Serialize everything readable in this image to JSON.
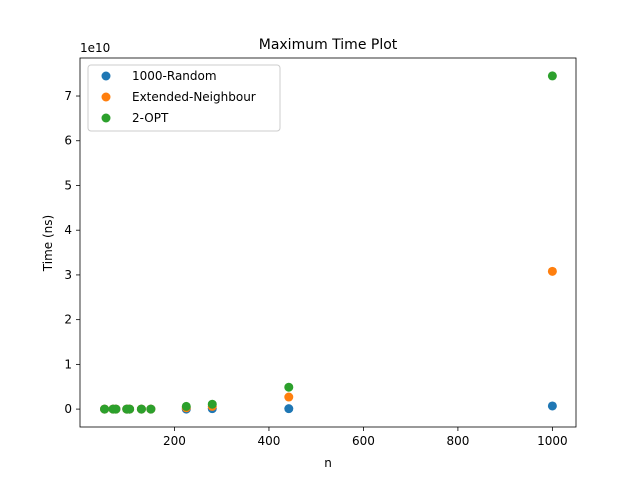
{
  "chart_data": {
    "type": "scatter",
    "title": "Maximum Time Plot",
    "xlabel": "n",
    "ylabel": "Time (ns)",
    "y_offset_text": "1e10",
    "xlim": [
      0,
      1050
    ],
    "ylim": [
      -0.4,
      7.85
    ],
    "x_ticks": [
      200,
      400,
      600,
      800,
      1000
    ],
    "y_ticks": [
      0,
      1,
      2,
      3,
      4,
      5,
      6,
      7
    ],
    "legend_position": "upper-left",
    "grid": false,
    "series": [
      {
        "name": "1000-Random",
        "color": "#1f77b4",
        "points": [
          [
            52,
            0.0
          ],
          [
            70,
            0.0
          ],
          [
            76,
            0.0
          ],
          [
            99,
            0.0
          ],
          [
            105,
            0.0
          ],
          [
            130,
            0.0
          ],
          [
            150,
            0.0
          ],
          [
            225,
            0.0
          ],
          [
            280,
            0.01
          ],
          [
            442,
            0.01
          ],
          [
            1000,
            0.07
          ]
        ]
      },
      {
        "name": "Extended-Neighbour",
        "color": "#ff7f0e",
        "points": [
          [
            52,
            0.0
          ],
          [
            70,
            0.0
          ],
          [
            76,
            0.0
          ],
          [
            99,
            0.0
          ],
          [
            105,
            0.0
          ],
          [
            130,
            0.0
          ],
          [
            150,
            0.0
          ],
          [
            225,
            0.03
          ],
          [
            280,
            0.06
          ],
          [
            442,
            0.27
          ],
          [
            1000,
            3.08
          ]
        ]
      },
      {
        "name": "2-OPT",
        "color": "#2ca02c",
        "points": [
          [
            52,
            0.0
          ],
          [
            70,
            0.0
          ],
          [
            76,
            0.0
          ],
          [
            99,
            0.0
          ],
          [
            105,
            0.0
          ],
          [
            130,
            0.0
          ],
          [
            150,
            0.0
          ],
          [
            225,
            0.06
          ],
          [
            280,
            0.11
          ],
          [
            442,
            0.49
          ],
          [
            1000,
            7.45
          ]
        ]
      }
    ]
  }
}
